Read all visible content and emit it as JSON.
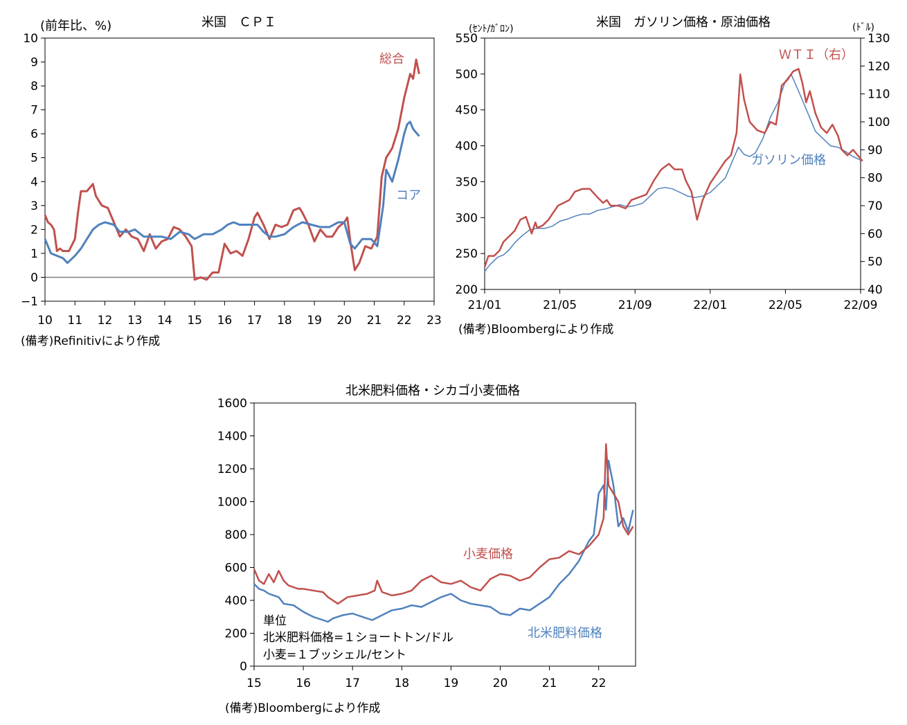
{
  "colors": {
    "red": "#C0504D",
    "blue": "#4F81BD",
    "axis": "#000000",
    "zero": "#808080"
  },
  "chart_data": [
    {
      "type": "line",
      "title": "米国　ＣＰＩ",
      "ylabel": "(前年比、%)",
      "source": "(備考)Refinitivにより作成",
      "x_ticks": [
        "10",
        "11",
        "12",
        "13",
        "14",
        "15",
        "16",
        "17",
        "18",
        "19",
        "20",
        "21",
        "22",
        "23"
      ],
      "xlim": [
        2010,
        2023
      ],
      "ylim": [
        -1,
        10
      ],
      "y_ticks": [
        "10",
        "9",
        "8",
        "7",
        "6",
        "5",
        "4",
        "3",
        "2",
        "1",
        "0",
        "−1"
      ],
      "y_tick_values": [
        10,
        9,
        8,
        7,
        6,
        5,
        4,
        3,
        2,
        1,
        0,
        -1
      ],
      "series": [
        {
          "name": "総合",
          "color": "red",
          "x": [
            2010.0,
            2010.1,
            2010.2,
            2010.3,
            2010.4,
            2010.5,
            2010.6,
            2010.8,
            2011.0,
            2011.1,
            2011.2,
            2011.4,
            2011.6,
            2011.7,
            2011.9,
            2012.1,
            2012.3,
            2012.5,
            2012.7,
            2012.9,
            2013.1,
            2013.3,
            2013.5,
            2013.7,
            2013.9,
            2014.1,
            2014.3,
            2014.5,
            2014.7,
            2014.9,
            2015.0,
            2015.2,
            2015.4,
            2015.6,
            2015.8,
            2016.0,
            2016.2,
            2016.4,
            2016.6,
            2016.8,
            2017.0,
            2017.1,
            2017.3,
            2017.5,
            2017.7,
            2017.9,
            2018.1,
            2018.3,
            2018.5,
            2018.6,
            2018.8,
            2019.0,
            2019.2,
            2019.4,
            2019.6,
            2019.8,
            2020.0,
            2020.1,
            2020.2,
            2020.35,
            2020.5,
            2020.7,
            2020.9,
            2021.1,
            2021.25,
            2021.4,
            2021.6,
            2021.8,
            2022.0,
            2022.2,
            2022.3,
            2022.4,
            2022.5
          ],
          "values": [
            2.6,
            2.3,
            2.2,
            2.0,
            1.1,
            1.2,
            1.1,
            1.1,
            1.6,
            2.7,
            3.6,
            3.6,
            3.9,
            3.4,
            3.0,
            2.9,
            2.3,
            1.7,
            2.0,
            1.7,
            1.6,
            1.1,
            1.8,
            1.2,
            1.5,
            1.6,
            2.1,
            2.0,
            1.7,
            1.3,
            -0.1,
            0.0,
            -0.1,
            0.2,
            0.2,
            1.4,
            1.0,
            1.1,
            0.9,
            1.6,
            2.5,
            2.7,
            2.2,
            1.6,
            2.2,
            2.1,
            2.2,
            2.8,
            2.9,
            2.7,
            2.2,
            1.5,
            2.0,
            1.7,
            1.7,
            2.1,
            2.3,
            2.5,
            1.5,
            0.3,
            0.6,
            1.3,
            1.2,
            1.7,
            4.2,
            5.0,
            5.4,
            6.2,
            7.5,
            8.5,
            8.3,
            9.1,
            8.5
          ]
        },
        {
          "name": "コア",
          "color": "blue",
          "x": [
            2010.0,
            2010.2,
            2010.4,
            2010.6,
            2010.75,
            2011.0,
            2011.2,
            2011.4,
            2011.6,
            2011.8,
            2012.0,
            2012.3,
            2012.5,
            2012.8,
            2013.0,
            2013.3,
            2013.6,
            2013.9,
            2014.2,
            2014.5,
            2014.8,
            2015.0,
            2015.3,
            2015.6,
            2015.9,
            2016.1,
            2016.3,
            2016.5,
            2016.7,
            2016.9,
            2017.1,
            2017.3,
            2017.5,
            2017.7,
            2018.0,
            2018.3,
            2018.6,
            2018.9,
            2019.2,
            2019.5,
            2019.8,
            2020.0,
            2020.2,
            2020.35,
            2020.6,
            2020.9,
            2021.1,
            2021.3,
            2021.4,
            2021.6,
            2021.8,
            2022.0,
            2022.1,
            2022.2,
            2022.3,
            2022.5
          ],
          "values": [
            1.6,
            1.0,
            0.9,
            0.8,
            0.6,
            0.9,
            1.2,
            1.6,
            2.0,
            2.2,
            2.3,
            2.2,
            1.9,
            1.9,
            2.0,
            1.7,
            1.7,
            1.7,
            1.6,
            1.9,
            1.8,
            1.6,
            1.8,
            1.8,
            2.0,
            2.2,
            2.3,
            2.2,
            2.2,
            2.2,
            2.2,
            1.9,
            1.7,
            1.7,
            1.8,
            2.1,
            2.3,
            2.2,
            2.1,
            2.1,
            2.3,
            2.3,
            1.4,
            1.2,
            1.6,
            1.6,
            1.3,
            3.0,
            4.5,
            4.0,
            4.9,
            6.0,
            6.4,
            6.5,
            6.2,
            5.9
          ]
        }
      ],
      "annotations": [
        {
          "text": "総合",
          "series": "総合"
        },
        {
          "text": "コア",
          "series": "コア"
        }
      ]
    },
    {
      "type": "line",
      "title": "米国　ガソリン価格・原油価格",
      "ylabel_left": "(ｾﾝﾄ/ｶﾞﾛﾝ)",
      "ylabel_right": "(ﾄﾞﾙ)",
      "source": "(備考)Bloombergにより作成",
      "x_ticks": [
        "21/01",
        "21/05",
        "21/09",
        "22/01",
        "22/05",
        "22/09"
      ],
      "x_tick_values": [
        0,
        4,
        8,
        12,
        16,
        20
      ],
      "xlim": [
        0,
        20
      ],
      "ylim_left": [
        200,
        550
      ],
      "ylim_right": [
        40,
        130
      ],
      "y_ticks_left": [
        "550",
        "500",
        "450",
        "400",
        "350",
        "300",
        "250",
        "200"
      ],
      "y_tick_values_left": [
        550,
        500,
        450,
        400,
        350,
        300,
        250,
        200
      ],
      "y_ticks_right": [
        "130",
        "120",
        "110",
        "100",
        "90",
        "80",
        "70",
        "60",
        "50",
        "40"
      ],
      "y_tick_values_right": [
        130,
        120,
        110,
        100,
        90,
        80,
        70,
        60,
        50,
        40
      ],
      "series": [
        {
          "name": "ＷＴＩ（右）",
          "color": "red",
          "axis": "right",
          "x": [
            0,
            0.2,
            0.5,
            0.8,
            1.0,
            1.3,
            1.6,
            1.9,
            2.2,
            2.5,
            2.7,
            2.8,
            3.1,
            3.4,
            3.6,
            3.9,
            4.2,
            4.5,
            4.8,
            5.2,
            5.6,
            6.0,
            6.3,
            6.5,
            6.7,
            7.1,
            7.5,
            7.8,
            8.2,
            8.6,
            9.0,
            9.4,
            9.8,
            10.1,
            10.5,
            10.7,
            11.0,
            11.3,
            11.6,
            12.0,
            12.4,
            12.8,
            13.1,
            13.4,
            13.6,
            13.8,
            14.1,
            14.5,
            14.9,
            15.2,
            15.5,
            15.8,
            16.1,
            16.4,
            16.7,
            16.9,
            17.1,
            17.3,
            17.6,
            17.9,
            18.2,
            18.5,
            18.8,
            19.0,
            19.3,
            19.6,
            20.1
          ],
          "values": [
            48,
            52,
            52,
            54,
            57,
            59,
            61,
            65,
            66,
            60,
            64,
            62,
            63,
            65,
            67,
            70,
            71,
            72,
            75,
            76,
            76,
            73,
            71,
            72,
            70,
            70,
            69,
            72,
            73,
            74,
            79,
            83,
            85,
            83,
            83,
            79,
            75,
            65,
            72,
            78,
            82,
            86,
            88,
            96,
            117,
            108,
            100,
            97,
            96,
            100,
            99,
            113,
            115,
            118,
            119,
            114,
            107,
            111,
            103,
            98,
            96,
            99,
            95,
            90,
            88,
            90,
            86
          ]
        },
        {
          "name": "ガソリン価格",
          "color": "blue",
          "axis": "left",
          "x": [
            0,
            0.3,
            0.7,
            1.0,
            1.3,
            1.6,
            2.0,
            2.4,
            2.8,
            3.2,
            3.6,
            4.0,
            4.4,
            4.8,
            5.2,
            5.6,
            6.0,
            6.4,
            6.8,
            7.2,
            7.6,
            8.0,
            8.4,
            8.8,
            9.2,
            9.6,
            10.0,
            10.4,
            10.8,
            11.2,
            11.6,
            12.0,
            12.4,
            12.8,
            13.2,
            13.5,
            13.8,
            14.1,
            14.4,
            14.8,
            15.2,
            15.6,
            16.0,
            16.3,
            16.5,
            16.8,
            17.2,
            17.6,
            18.0,
            18.4,
            18.8,
            19.2,
            19.6,
            20.0
          ],
          "values": [
            225,
            235,
            245,
            248,
            255,
            265,
            275,
            283,
            285,
            285,
            288,
            295,
            298,
            302,
            305,
            305,
            310,
            312,
            315,
            318,
            315,
            317,
            320,
            330,
            340,
            342,
            340,
            335,
            330,
            328,
            330,
            335,
            345,
            355,
            380,
            398,
            388,
            385,
            390,
            410,
            440,
            460,
            490,
            500,
            488,
            470,
            445,
            420,
            410,
            400,
            398,
            392,
            385,
            380
          ]
        }
      ],
      "annotations": [
        {
          "text": "ＷＴＩ（右）",
          "series": "ＷＴＩ（右）"
        },
        {
          "text": "ガソリン価格",
          "series": "ガソリン価格"
        }
      ]
    },
    {
      "type": "line",
      "title": "北米肥料価格・シカゴ小麦価格",
      "source": "(備考)Bloombergにより作成",
      "x_ticks": [
        "15",
        "16",
        "17",
        "18",
        "19",
        "20",
        "21",
        "22"
      ],
      "xlim": [
        2015,
        2022.75
      ],
      "ylim": [
        0,
        1600
      ],
      "y_ticks": [
        "1600",
        "1400",
        "1200",
        "1000",
        "800",
        "600",
        "400",
        "200",
        "0"
      ],
      "y_tick_values": [
        1600,
        1400,
        1200,
        1000,
        800,
        600,
        400,
        200,
        0
      ],
      "units_box": [
        "単位",
        "北米肥料価格=１ショートトン/ドル",
        "小麦=１ブッシェル/セント"
      ],
      "series": [
        {
          "name": "小麦価格",
          "color": "red",
          "x": [
            2015.0,
            2015.1,
            2015.2,
            2015.3,
            2015.4,
            2015.5,
            2015.6,
            2015.7,
            2015.8,
            2015.9,
            2016.0,
            2016.2,
            2016.4,
            2016.5,
            2016.6,
            2016.7,
            2016.9,
            2017.1,
            2017.3,
            2017.45,
            2017.5,
            2017.6,
            2017.8,
            2018.0,
            2018.2,
            2018.4,
            2018.6,
            2018.8,
            2019.0,
            2019.2,
            2019.4,
            2019.5,
            2019.6,
            2019.8,
            2020.0,
            2020.2,
            2020.4,
            2020.6,
            2020.8,
            2021.0,
            2021.2,
            2021.4,
            2021.6,
            2021.8,
            2022.0,
            2022.1,
            2022.15,
            2022.2,
            2022.3,
            2022.4,
            2022.5,
            2022.6,
            2022.7
          ],
          "values": [
            590,
            520,
            500,
            560,
            510,
            580,
            520,
            490,
            480,
            470,
            470,
            460,
            450,
            420,
            400,
            380,
            420,
            430,
            440,
            460,
            520,
            450,
            430,
            440,
            460,
            520,
            550,
            510,
            500,
            520,
            480,
            470,
            460,
            530,
            560,
            550,
            520,
            540,
            600,
            650,
            660,
            700,
            680,
            730,
            800,
            900,
            1350,
            1100,
            1050,
            1000,
            850,
            800,
            850
          ]
        },
        {
          "name": "北米肥料価格",
          "color": "blue",
          "x": [
            2015.0,
            2015.1,
            2015.2,
            2015.3,
            2015.4,
            2015.5,
            2015.6,
            2015.8,
            2016.0,
            2016.2,
            2016.4,
            2016.5,
            2016.6,
            2016.8,
            2017.0,
            2017.2,
            2017.4,
            2017.6,
            2017.8,
            2018.0,
            2018.2,
            2018.4,
            2018.6,
            2018.8,
            2019.0,
            2019.2,
            2019.4,
            2019.6,
            2019.8,
            2020.0,
            2020.2,
            2020.4,
            2020.6,
            2020.8,
            2021.0,
            2021.2,
            2021.4,
            2021.6,
            2021.8,
            2021.9,
            2022.0,
            2022.1,
            2022.15,
            2022.2,
            2022.3,
            2022.4,
            2022.5,
            2022.6,
            2022.7
          ],
          "values": [
            500,
            470,
            460,
            440,
            430,
            420,
            380,
            370,
            330,
            300,
            280,
            270,
            290,
            310,
            320,
            300,
            280,
            310,
            340,
            350,
            370,
            360,
            390,
            420,
            440,
            400,
            380,
            370,
            360,
            320,
            310,
            350,
            340,
            380,
            420,
            500,
            560,
            640,
            760,
            800,
            1050,
            1100,
            950,
            1250,
            1100,
            850,
            900,
            820,
            950
          ]
        }
      ],
      "annotations": [
        {
          "text": "小麦価格",
          "series": "小麦価格"
        },
        {
          "text": "北米肥料価格",
          "series": "北米肥料価格"
        }
      ]
    }
  ]
}
